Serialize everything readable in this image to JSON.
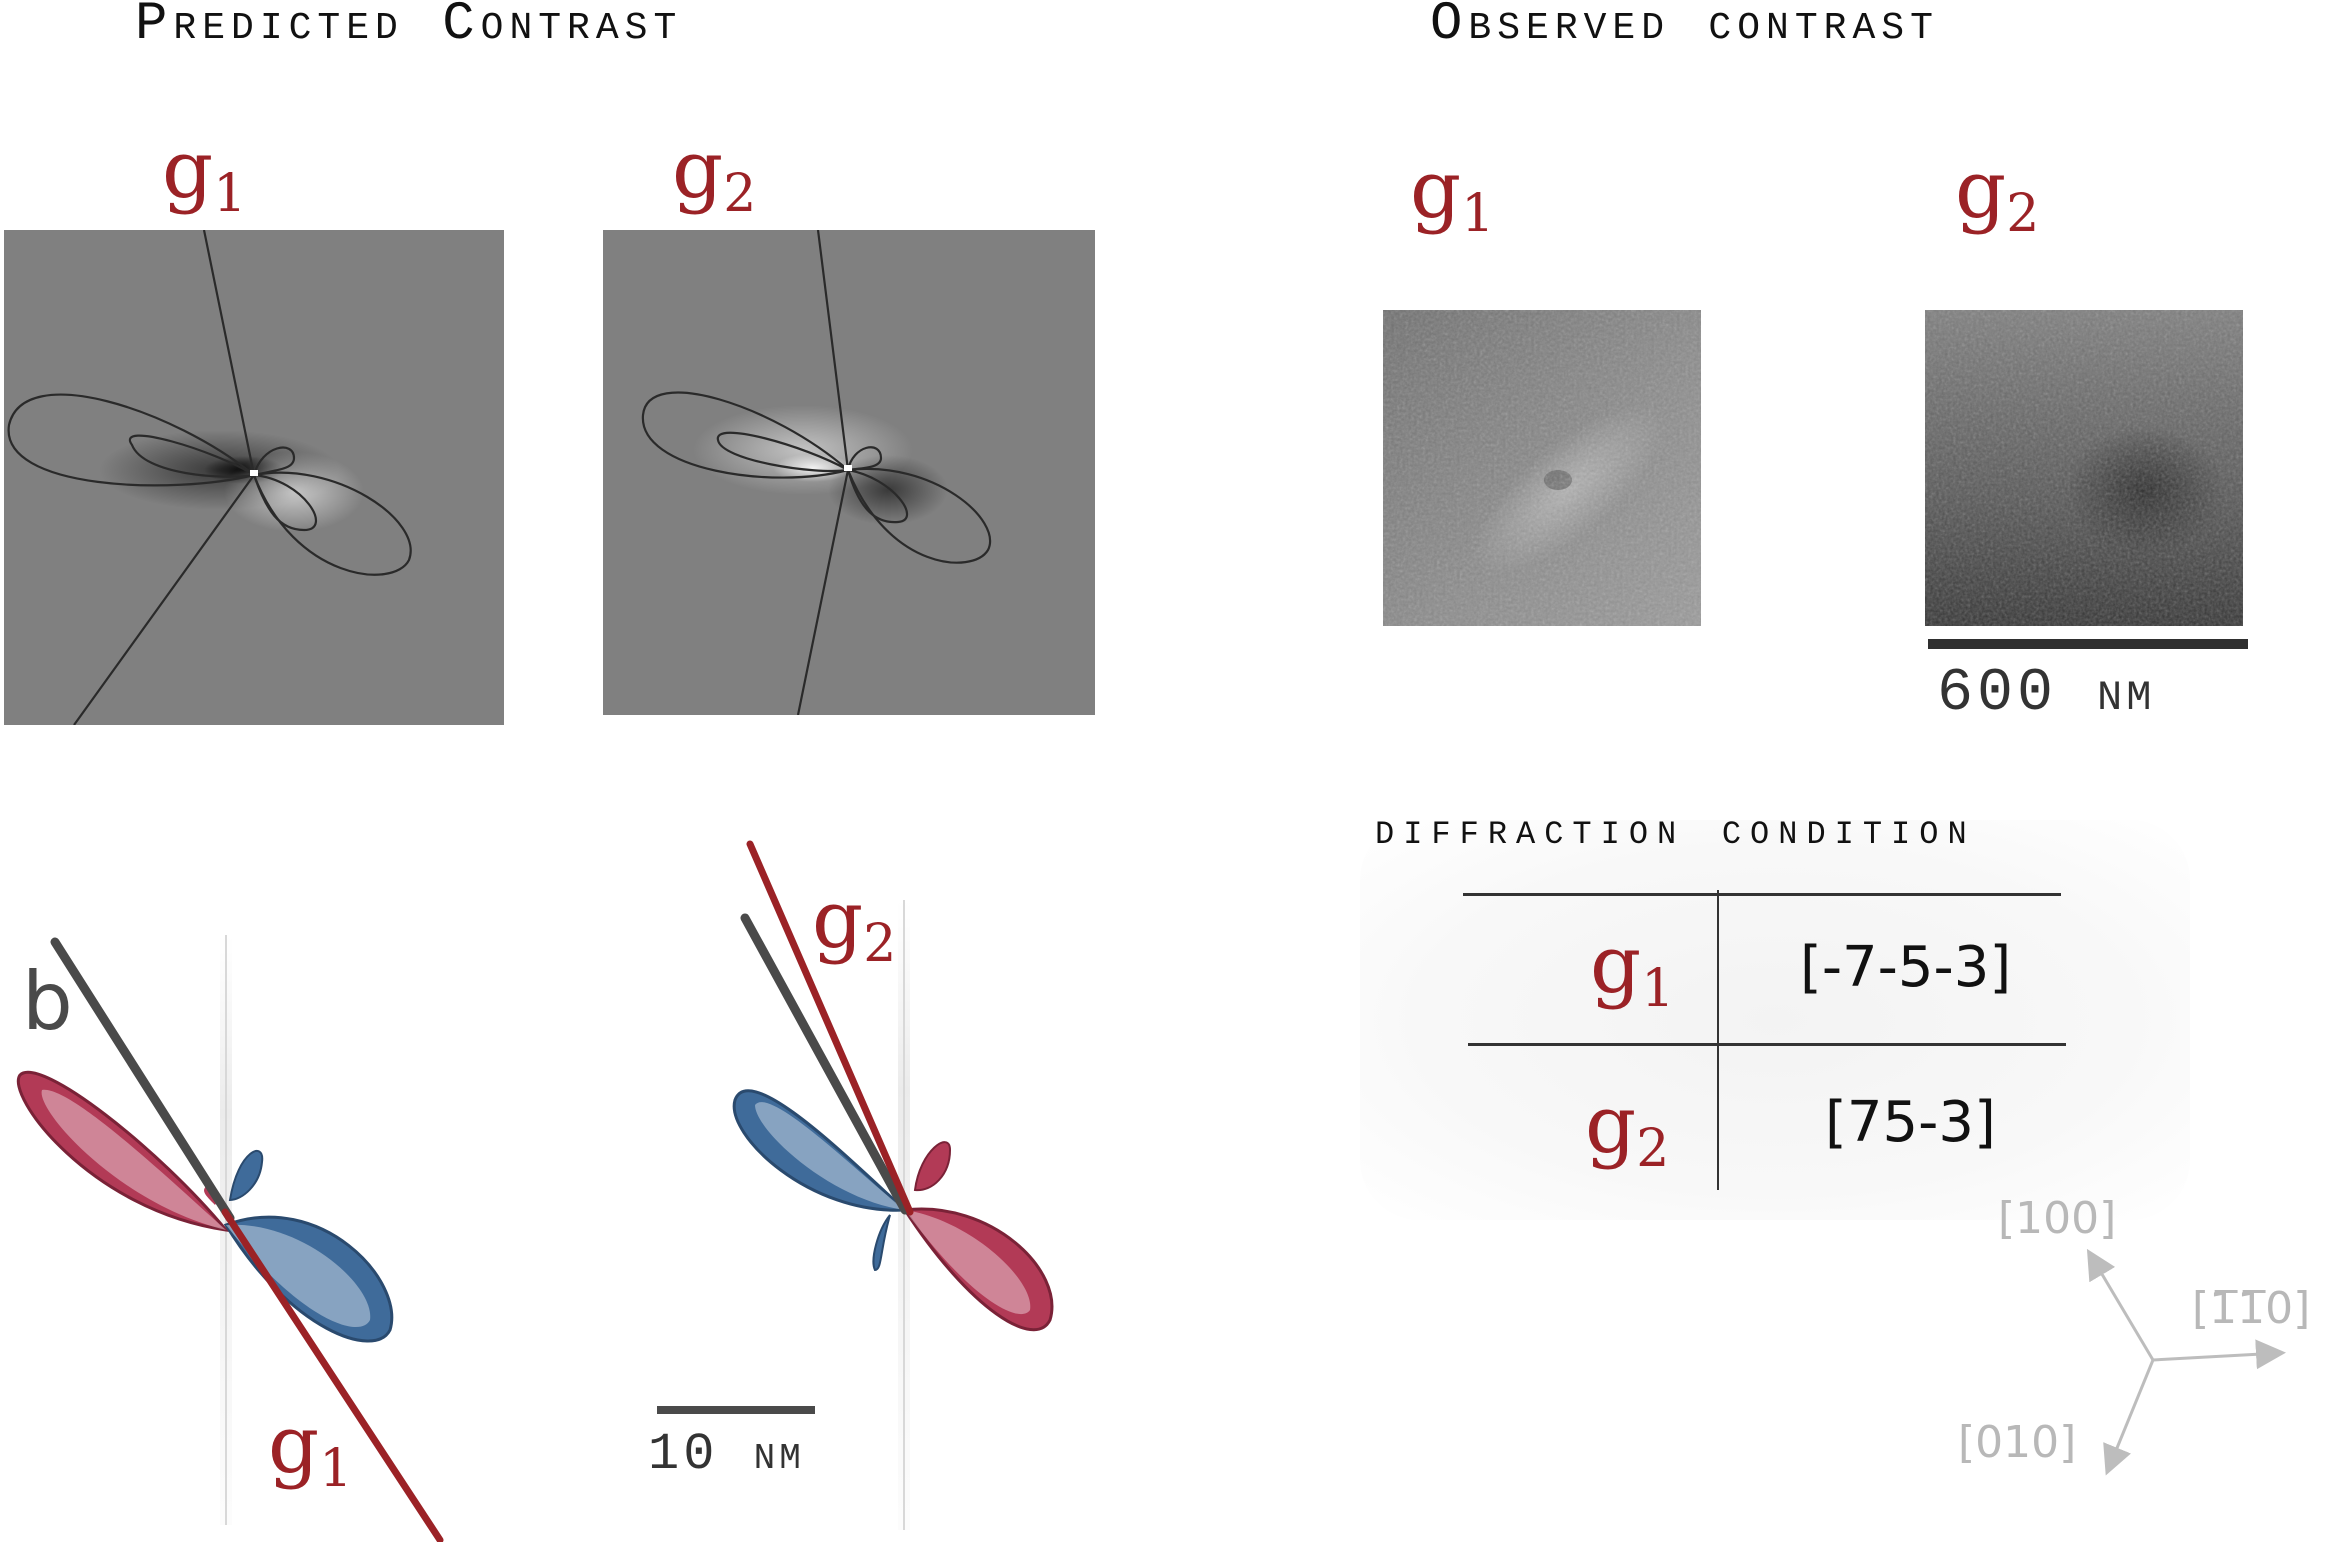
{
  "headings": {
    "predicted": "Predicted Contrast",
    "observed": "Observed contrast"
  },
  "g_symbol": "g",
  "g_labels": {
    "g1_sub": "1",
    "g2_sub": "2"
  },
  "burgers_label": "b",
  "scale_bars": {
    "observed": "600 nm",
    "model": "10 nm"
  },
  "diffraction_table": {
    "title": "diffraction condition",
    "rows": [
      {
        "sub": "1",
        "value": "[-7-5-3]"
      },
      {
        "sub": "2",
        "value": "[75-3]"
      }
    ]
  },
  "crystal_axes": {
    "up": "[100]",
    "right": "[1̅1̅0]",
    "down": "[010]"
  },
  "colors": {
    "accent_red": "#9b2226",
    "lobe_blue": "#3f6b9a",
    "lobe_red": "#b23a56",
    "burgers_gray": "#4a4a4a"
  }
}
